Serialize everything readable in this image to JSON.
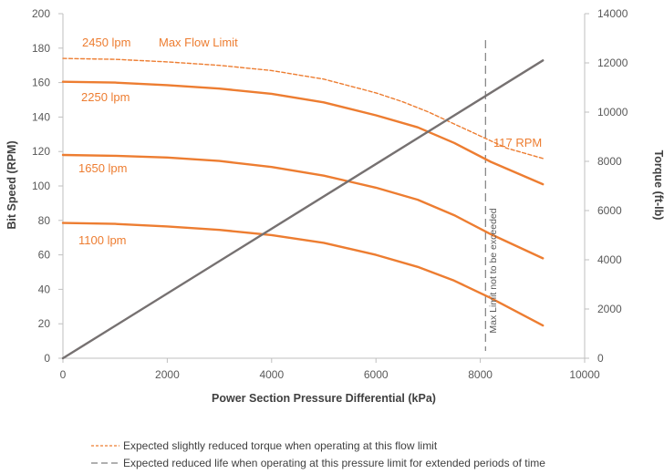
{
  "chart_data": {
    "type": "line",
    "xlabel": "Power Section Pressure Differential (kPa)",
    "ylabel": "Bit Speed (RPM)",
    "y2label": "Torque (ft-lb)",
    "xlim": [
      0,
      10000
    ],
    "ylim": [
      0,
      200
    ],
    "y2lim": [
      0,
      14000
    ],
    "xticks": [
      "0",
      "2000",
      "4000",
      "6000",
      "8000",
      "10000"
    ],
    "yticks": [
      "0",
      "20",
      "40",
      "60",
      "80",
      "100",
      "120",
      "140",
      "160",
      "180",
      "200"
    ],
    "y2ticks": [
      "0",
      "2000",
      "4000",
      "6000",
      "8000",
      "10000",
      "12000",
      "14000"
    ],
    "grid": false,
    "series": [
      {
        "name": "2450 lpm",
        "axis": "left",
        "style": "dashed",
        "color": "#ED7D31",
        "x": [
          0,
          1000,
          2000,
          3000,
          4000,
          5000,
          6000,
          6500,
          7000,
          7500,
          8000,
          8500,
          9200
        ],
        "y": [
          174,
          173.5,
          172,
          170,
          167,
          162,
          154,
          149,
          143,
          136,
          129,
          122,
          116
        ]
      },
      {
        "name": "2250 lpm",
        "axis": "left",
        "style": "solid",
        "color": "#ED7D31",
        "x": [
          0,
          1000,
          2000,
          3000,
          4000,
          5000,
          6000,
          6800,
          7500,
          8200,
          9200
        ],
        "y": [
          160.5,
          160,
          158.5,
          156.5,
          153.5,
          148.5,
          141,
          134,
          125,
          114,
          101
        ]
      },
      {
        "name": "1650 lpm",
        "axis": "left",
        "style": "solid",
        "color": "#ED7D31",
        "x": [
          0,
          1000,
          2000,
          3000,
          4000,
          5000,
          6000,
          6800,
          7500,
          8200,
          9200
        ],
        "y": [
          118,
          117.5,
          116.5,
          114.5,
          111,
          106,
          99,
          92,
          83,
          72,
          58
        ]
      },
      {
        "name": "1100 lpm",
        "axis": "left",
        "style": "solid",
        "color": "#ED7D31",
        "x": [
          0,
          1000,
          2000,
          3000,
          4000,
          5000,
          6000,
          6800,
          7500,
          8200,
          9200
        ],
        "y": [
          78.5,
          78,
          76.5,
          74.5,
          71.5,
          67,
          60,
          53,
          45,
          35,
          19
        ]
      },
      {
        "name": "Torque",
        "axis": "right",
        "style": "solid",
        "color": "#767171",
        "x": [
          0,
          9200
        ],
        "y": [
          0,
          12100
        ]
      }
    ],
    "max_pressure_line": {
      "x": 8100,
      "label": "Max Limit not to be exceeded",
      "color": "#808080",
      "style": "dashed"
    },
    "annotations": [
      {
        "text": "Max Flow Limit",
        "color": "#ED7D31"
      },
      {
        "text": "117 RPM",
        "color": "#ED7D31"
      }
    ],
    "legend": [
      {
        "text": "Expected slightly reduced torque when operating at this flow limit",
        "style": "dashed",
        "color": "#ED7D31"
      },
      {
        "text": "Expected reduced life when operating at this pressure limit for extended periods of time",
        "style": "long-dash",
        "color": "#808080"
      }
    ]
  }
}
